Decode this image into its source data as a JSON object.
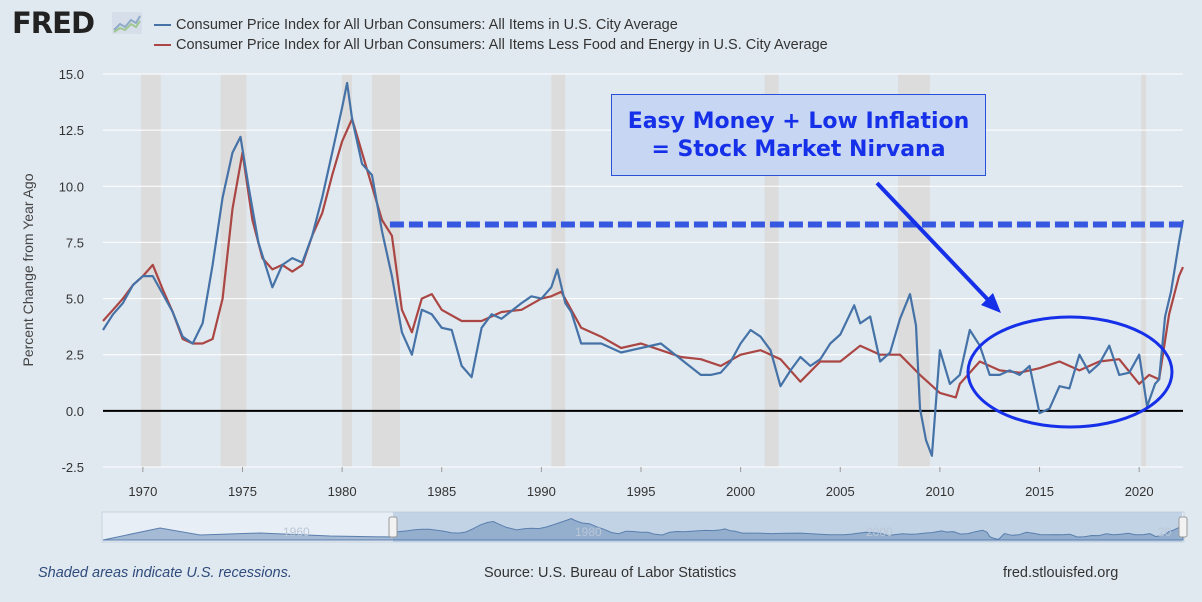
{
  "header": {
    "logo_text": "FRED",
    "legend": [
      {
        "label": "Consumer Price Index for All Urban Consumers: All Items in U.S. City Average",
        "color": "#4572a7"
      },
      {
        "label": "Consumer Price Index for All Urban Consumers: All Items Less Food and Energy in U.S. City Average",
        "color": "#aa4643"
      }
    ]
  },
  "annotation": {
    "line1": "Easy Money + Low Inflation",
    "line2": "= Stock Market Nirvana",
    "color": "#1530e8",
    "reference_level": 8.3
  },
  "footer": {
    "recession_note": "Shaded areas indicate U.S. recessions.",
    "source": "Source: U.S. Bureau of Labor Statistics",
    "site": "fred.stlouisfed.org"
  },
  "navigator": {
    "labels": [
      "1960",
      "1980",
      "2000",
      "20"
    ]
  },
  "chart_data": {
    "type": "line",
    "ylabel": "Percent Change from Year Ago",
    "xlim": [
      1968,
      2022.2
    ],
    "ylim": [
      -2.5,
      15
    ],
    "yticks": [
      -2.5,
      0.0,
      2.5,
      5.0,
      7.5,
      10.0,
      12.5,
      15.0
    ],
    "ytick_labels": [
      "-2.5",
      "0.0",
      "2.5",
      "5.0",
      "7.5",
      "10.0",
      "12.5",
      "15.0"
    ],
    "xticks": [
      1970,
      1975,
      1980,
      1985,
      1990,
      1995,
      2000,
      2005,
      2010,
      2015,
      2020
    ],
    "xtick_labels": [
      "1970",
      "1975",
      "1980",
      "1985",
      "1990",
      "1995",
      "2000",
      "2005",
      "2010",
      "2015",
      "2020"
    ],
    "recessions": [
      [
        1969.9,
        1970.9
      ],
      [
        1973.9,
        1975.2
      ],
      [
        1980.0,
        1980.5
      ],
      [
        1981.5,
        1982.9
      ],
      [
        1990.5,
        1991.2
      ],
      [
        2001.2,
        2001.9
      ],
      [
        2007.9,
        2009.5
      ],
      [
        2020.1,
        2020.35
      ]
    ],
    "series": [
      {
        "name": "Consumer Price Index for All Urban Consumers: All Items in U.S. City Average",
        "color": "#4572a7",
        "x": [
          1968.0,
          1968.5,
          1969.0,
          1969.5,
          1970.0,
          1970.5,
          1971.0,
          1971.5,
          1972.0,
          1972.5,
          1973.0,
          1973.5,
          1974.0,
          1974.5,
          1974.9,
          1975.3,
          1975.8,
          1976.5,
          1977.0,
          1977.5,
          1978.0,
          1978.5,
          1979.0,
          1979.5,
          1980.0,
          1980.25,
          1980.5,
          1981.0,
          1981.5,
          1982.0,
          1982.5,
          1983.0,
          1983.5,
          1984.0,
          1984.5,
          1985.0,
          1985.5,
          1986.0,
          1986.5,
          1987.0,
          1987.5,
          1988.0,
          1989.0,
          1989.5,
          1990.0,
          1990.5,
          1990.8,
          1991.2,
          1991.5,
          1992.0,
          1993.0,
          1994.0,
          1995.0,
          1996.0,
          1997.0,
          1998.0,
          1998.5,
          1999.0,
          1999.5,
          2000.0,
          2000.5,
          2001.0,
          2001.5,
          2002.0,
          2002.5,
          2003.0,
          2003.5,
          2004.0,
          2004.5,
          2005.0,
          2005.7,
          2006.0,
          2006.5,
          2007.0,
          2007.5,
          2008.0,
          2008.5,
          2008.8,
          2009.0,
          2009.3,
          2009.6,
          2010.0,
          2010.5,
          2011.0,
          2011.5,
          2012.0,
          2012.5,
          2013.0,
          2013.5,
          2014.0,
          2014.5,
          2015.0,
          2015.5,
          2016.0,
          2016.5,
          2017.0,
          2017.5,
          2018.0,
          2018.5,
          2019.0,
          2019.5,
          2020.0,
          2020.4,
          2020.8,
          2021.0,
          2021.3,
          2021.6,
          2022.0,
          2022.2
        ],
        "values": [
          3.6,
          4.3,
          4.8,
          5.6,
          6.0,
          6.0,
          5.2,
          4.4,
          3.3,
          3.0,
          3.9,
          6.5,
          9.5,
          11.5,
          12.2,
          10.0,
          7.5,
          5.5,
          6.5,
          6.8,
          6.6,
          7.8,
          9.5,
          11.5,
          13.5,
          14.6,
          13.0,
          11.0,
          10.5,
          8.0,
          6.0,
          3.5,
          2.5,
          4.5,
          4.3,
          3.7,
          3.6,
          2.0,
          1.5,
          3.7,
          4.3,
          4.1,
          4.8,
          5.1,
          5.0,
          5.5,
          6.3,
          4.8,
          4.4,
          3.0,
          3.0,
          2.6,
          2.8,
          3.0,
          2.3,
          1.6,
          1.6,
          1.7,
          2.2,
          3.0,
          3.6,
          3.3,
          2.7,
          1.1,
          1.8,
          2.4,
          2.0,
          2.3,
          3.0,
          3.4,
          4.7,
          3.9,
          4.2,
          2.2,
          2.6,
          4.1,
          5.2,
          3.8,
          0.1,
          -1.3,
          -2.0,
          2.7,
          1.2,
          1.6,
          3.6,
          2.9,
          1.6,
          1.6,
          1.8,
          1.6,
          2.0,
          -0.1,
          0.1,
          1.1,
          1.0,
          2.5,
          1.7,
          2.1,
          2.9,
          1.6,
          1.7,
          2.5,
          0.2,
          1.2,
          1.4,
          4.2,
          5.3,
          7.5,
          8.5
        ]
      },
      {
        "name": "Consumer Price Index for All Urban Consumers: All Items Less Food and Energy in U.S. City Average",
        "color": "#aa4643",
        "x": [
          1968.0,
          1968.5,
          1969.0,
          1969.5,
          1970.0,
          1970.5,
          1971.0,
          1971.5,
          1972.0,
          1972.5,
          1973.0,
          1973.5,
          1974.0,
          1974.5,
          1975.0,
          1975.5,
          1976.0,
          1976.5,
          1977.0,
          1977.5,
          1978.0,
          1978.5,
          1979.0,
          1979.5,
          1980.0,
          1980.5,
          1981.0,
          1981.5,
          1982.0,
          1982.5,
          1983.0,
          1983.5,
          1984.0,
          1984.5,
          1985.0,
          1986.0,
          1987.0,
          1988.0,
          1989.0,
          1990.0,
          1990.5,
          1991.0,
          1992.0,
          1993.0,
          1994.0,
          1995.0,
          1996.0,
          1997.0,
          1998.0,
          1999.0,
          2000.0,
          2001.0,
          2002.0,
          2003.0,
          2004.0,
          2005.0,
          2006.0,
          2006.5,
          2007.0,
          2008.0,
          2009.0,
          2010.0,
          2010.8,
          2011.0,
          2012.0,
          2013.0,
          2014.0,
          2015.0,
          2016.0,
          2017.0,
          2018.0,
          2019.0,
          2020.0,
          2020.5,
          2021.0,
          2021.5,
          2022.0,
          2022.2
        ],
        "values": [
          4.0,
          4.5,
          5.0,
          5.6,
          6.0,
          6.5,
          5.4,
          4.4,
          3.2,
          3.0,
          3.0,
          3.2,
          5.0,
          9.0,
          11.5,
          8.5,
          6.8,
          6.3,
          6.5,
          6.2,
          6.5,
          7.8,
          8.8,
          10.5,
          12.0,
          13.0,
          11.5,
          10.0,
          8.5,
          7.8,
          4.5,
          3.5,
          5.0,
          5.2,
          4.5,
          4.0,
          4.0,
          4.4,
          4.5,
          5.0,
          5.1,
          5.3,
          3.7,
          3.3,
          2.8,
          3.0,
          2.7,
          2.4,
          2.3,
          2.0,
          2.5,
          2.7,
          2.3,
          1.3,
          2.2,
          2.2,
          2.9,
          2.7,
          2.5,
          2.5,
          1.6,
          0.8,
          0.6,
          1.2,
          2.2,
          1.8,
          1.7,
          1.9,
          2.2,
          1.8,
          2.2,
          2.3,
          1.2,
          1.6,
          1.4,
          4.3,
          6.0,
          6.4
        ]
      }
    ]
  }
}
